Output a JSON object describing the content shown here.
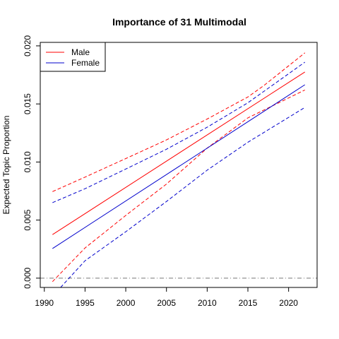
{
  "chart_data": {
    "type": "line",
    "title": "Importance of 31 Multimodal",
    "xlabel": "",
    "ylabel": "Expected Topic Proportion",
    "xlim": [
      1989.5,
      2023.5
    ],
    "ylim": [
      -0.0008,
      0.0203
    ],
    "xticks": [
      1990,
      1995,
      2000,
      2005,
      2010,
      2015,
      2020
    ],
    "yticks": [
      0.0,
      0.005,
      0.01,
      0.015,
      0.02
    ],
    "ytick_labels": [
      "0.000",
      "0.005",
      "0.010",
      "0.015",
      "0.020"
    ],
    "reference_line": {
      "y": 0,
      "style": "dash-dot",
      "color": "#777777"
    },
    "legend": {
      "position": "top-left",
      "entries": [
        "Male",
        "Female"
      ]
    },
    "colors": {
      "male": "#ff0000",
      "female": "#0000cc"
    },
    "series": [
      {
        "name": "Male",
        "style": "solid",
        "color": "#ff0000",
        "x": [
          1991,
          2022
        ],
        "values": [
          0.00375,
          0.01775
        ]
      },
      {
        "name": "",
        "style": "dashed",
        "color": "#ff0000",
        "x": [
          1991,
          1995,
          2000,
          2005,
          2010,
          2015,
          2017,
          2022
        ],
        "values": [
          0.00745,
          0.0087,
          0.0103,
          0.0119,
          0.0137,
          0.0156,
          0.0166,
          0.0194
        ]
      },
      {
        "name": "",
        "style": "dashed",
        "color": "#ff0000",
        "x": [
          1991,
          1995,
          2000,
          2005,
          2010,
          2015,
          2022
        ],
        "values": [
          -0.0003,
          0.0026,
          0.0054,
          0.0081,
          0.0112,
          0.0138,
          0.0162
        ]
      },
      {
        "name": "Female",
        "style": "solid",
        "color": "#0000cc",
        "x": [
          1991,
          2022
        ],
        "values": [
          0.00255,
          0.01665
        ]
      },
      {
        "name": "",
        "style": "dashed",
        "color": "#0000cc",
        "x": [
          1991,
          1995,
          2000,
          2005,
          2010,
          2015,
          2022
        ],
        "values": [
          0.0065,
          0.0077,
          0.0094,
          0.0111,
          0.013,
          0.0151,
          0.0186
        ]
      },
      {
        "name": "",
        "style": "dashed",
        "color": "#0000cc",
        "x": [
          1992,
          1995,
          2000,
          2005,
          2010,
          2015,
          2022
        ],
        "values": [
          -0.0008,
          0.0015,
          0.004,
          0.0066,
          0.0093,
          0.0117,
          0.0147
        ]
      }
    ]
  }
}
